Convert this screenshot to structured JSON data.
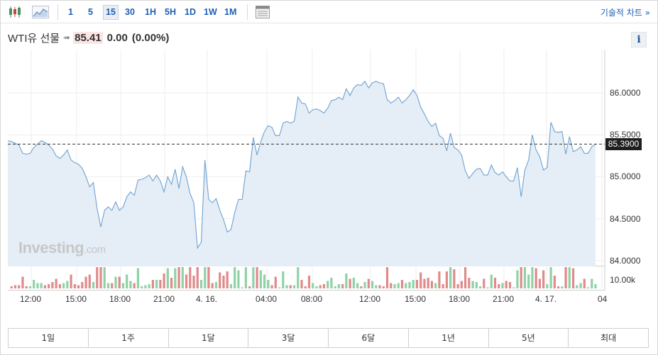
{
  "toolbar": {
    "chart_type_icons": [
      "candlestick-icon",
      "area-chart-icon"
    ],
    "timeframes": [
      {
        "label": "1",
        "active": false
      },
      {
        "label": "5",
        "active": false
      },
      {
        "label": "15",
        "active": true
      },
      {
        "label": "30",
        "active": false
      },
      {
        "label": "1H",
        "active": false
      },
      {
        "label": "5H",
        "active": false
      },
      {
        "label": "1D",
        "active": false
      },
      {
        "label": "1W",
        "active": false
      },
      {
        "label": "1M",
        "active": false
      }
    ],
    "table_icon": "table-icon",
    "technical_chart_label": "기술적 차트 »"
  },
  "header": {
    "instrument": "WTI유 선물",
    "arrow": "➠",
    "price": "85.41",
    "change": "0.00",
    "change_pct": "(0.00%)",
    "info_label": "i"
  },
  "chart_data": {
    "type": "area",
    "title": "",
    "x_tick_labels": [
      "12:00",
      "15:00",
      "18:00",
      "21:00",
      "4. 16.",
      "04:00",
      "08:00",
      "12:00",
      "15:00",
      "18:00",
      "21:00",
      "4. 17.",
      "04"
    ],
    "y_tick_labels": [
      "86.0000",
      "85.5000",
      "85.0000",
      "84.5000",
      "84.0000"
    ],
    "y_ticks": [
      86.0,
      85.5,
      85.0,
      84.5,
      84.0
    ],
    "ylim": [
      83.93,
      86.45
    ],
    "last_value_label": "85.3900",
    "last_value": 85.39,
    "volume_axis_label": "10.00k",
    "volume_ylim": [
      0,
      12000
    ],
    "grid": true,
    "colors": {
      "line": "#6fa2d0",
      "fill": "#e5eef7",
      "volume_up": "#8fd2a5",
      "volume_down": "#e08a8a"
    },
    "series": [
      {
        "values": [
          85.43,
          85.42,
          85.4,
          85.38,
          85.28,
          85.27,
          85.28,
          85.35,
          85.39,
          85.43,
          85.41,
          85.38,
          85.33,
          85.25,
          85.22,
          85.26,
          85.32,
          85.2,
          85.17,
          85.15,
          85.1,
          85.0,
          84.88,
          84.93,
          84.62,
          84.4,
          84.6,
          84.64,
          84.6,
          84.7,
          84.6,
          84.64,
          84.76,
          84.82,
          84.78,
          84.96,
          84.97,
          84.99,
          85.02,
          84.95,
          85.02,
          84.95,
          84.82,
          85.0,
          84.91,
          85.09,
          84.86,
          85.12,
          85.0,
          84.8,
          84.69,
          84.15,
          84.22,
          85.2,
          84.73,
          84.69,
          84.74,
          84.6,
          84.49,
          84.34,
          84.37,
          84.57,
          84.73,
          84.73,
          85.07,
          85.06,
          85.47,
          85.26,
          85.42,
          85.54,
          85.61,
          85.59,
          85.49,
          85.49,
          85.64,
          85.66,
          85.64,
          85.66,
          85.95,
          85.88,
          85.87,
          85.76,
          85.8,
          85.81,
          85.79,
          85.76,
          85.82,
          85.91,
          85.92,
          85.95,
          85.92,
          86.05,
          85.97,
          86.06,
          86.1,
          86.09,
          86.14,
          86.06,
          86.12,
          86.14,
          86.12,
          86.11,
          85.92,
          85.88,
          85.91,
          85.95,
          85.88,
          85.92,
          85.97,
          86.04,
          85.97,
          85.83,
          85.75,
          85.66,
          85.6,
          85.64,
          85.49,
          85.46,
          85.31,
          85.52,
          85.35,
          85.32,
          85.26,
          85.07,
          84.98,
          85.04,
          85.09,
          85.1,
          85.02,
          85.02,
          85.14,
          85.05,
          85.02,
          85.06,
          85.0,
          84.95,
          84.95,
          85.11,
          84.76,
          85.08,
          85.2,
          85.5,
          85.32,
          85.24,
          85.08,
          85.11,
          85.65,
          85.54,
          85.53,
          85.54,
          85.27,
          85.48,
          85.3,
          85.32,
          85.36,
          85.28,
          85.28,
          85.36,
          85.39
        ]
      }
    ]
  },
  "range_tabs": [
    "1일",
    "1주",
    "1달",
    "3달",
    "6달",
    "1년",
    "5년",
    "최대"
  ]
}
